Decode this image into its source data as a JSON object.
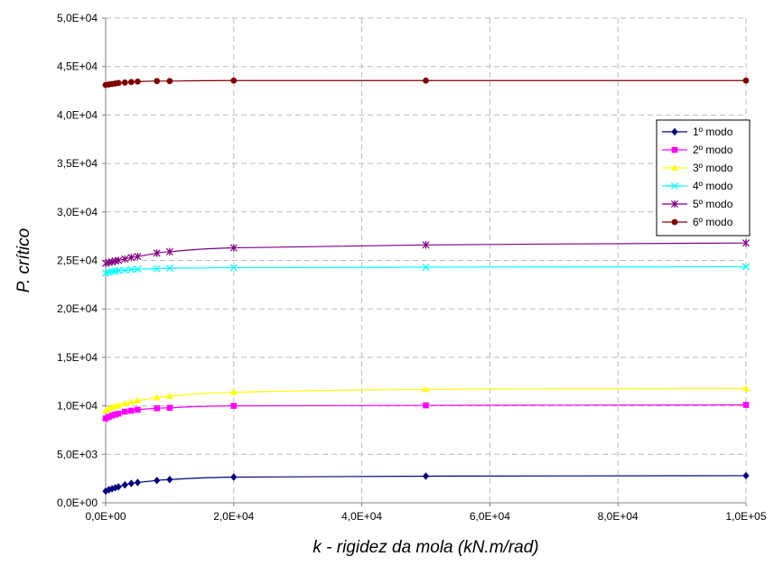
{
  "chart_data": {
    "type": "line",
    "title": "",
    "xlabel": "k - rigidez da mola (kN.m/rad)",
    "ylabel": "P. crítico",
    "xlim": [
      0,
      100000
    ],
    "ylim": [
      0,
      50000
    ],
    "x_ticks": [
      0,
      20000,
      40000,
      60000,
      80000,
      100000
    ],
    "x_tick_labels": [
      "0,0E+00",
      "2,0E+04",
      "4,0E+04",
      "6,0E+04",
      "8,0E+04",
      "1,0E+05"
    ],
    "y_ticks": [
      0,
      5000,
      10000,
      15000,
      20000,
      25000,
      30000,
      35000,
      40000,
      45000,
      50000
    ],
    "y_tick_labels": [
      "0,0E+00",
      "5,0E+03",
      "1,0E+04",
      "1,5E+04",
      "2,0E+04",
      "2,5E+04",
      "3,0E+04",
      "3,5E+04",
      "4,0E+04",
      "4,5E+04",
      "5,0E+04"
    ],
    "grid": {
      "x": true,
      "y": true,
      "style": "dashed"
    },
    "legend_position": "right",
    "x": [
      0,
      500,
      1000,
      1500,
      2000,
      3000,
      4000,
      5000,
      8000,
      10000,
      20000,
      50000,
      100000
    ],
    "series": [
      {
        "name": "1º modo",
        "color": "#000080",
        "marker": "diamond",
        "values": [
          1200,
          1350,
          1450,
          1550,
          1650,
          1850,
          2000,
          2100,
          2300,
          2400,
          2650,
          2750,
          2800
        ]
      },
      {
        "name": "2º modo",
        "color": "#ff00ff",
        "marker": "square",
        "values": [
          8700,
          8850,
          9000,
          9100,
          9200,
          9400,
          9500,
          9600,
          9750,
          9800,
          10000,
          10050,
          10100
        ]
      },
      {
        "name": "3º modo",
        "color": "#ffff00",
        "marker": "triangle",
        "values": [
          9500,
          9700,
          9850,
          9950,
          10050,
          10250,
          10400,
          10550,
          10850,
          11000,
          11400,
          11700,
          11800
        ]
      },
      {
        "name": "4º modo",
        "color": "#00ffff",
        "marker": "x",
        "values": [
          23700,
          23800,
          23850,
          23900,
          23950,
          24000,
          24050,
          24100,
          24150,
          24200,
          24250,
          24300,
          24350
        ]
      },
      {
        "name": "5º modo",
        "color": "#800080",
        "marker": "star",
        "values": [
          24700,
          24800,
          24850,
          24950,
          25000,
          25150,
          25300,
          25400,
          25750,
          25900,
          26300,
          26600,
          26800
        ]
      },
      {
        "name": "6º modo",
        "color": "#800000",
        "marker": "circle",
        "values": [
          43100,
          43150,
          43200,
          43250,
          43300,
          43350,
          43400,
          43450,
          43500,
          43500,
          43550,
          43550,
          43550
        ]
      }
    ]
  }
}
